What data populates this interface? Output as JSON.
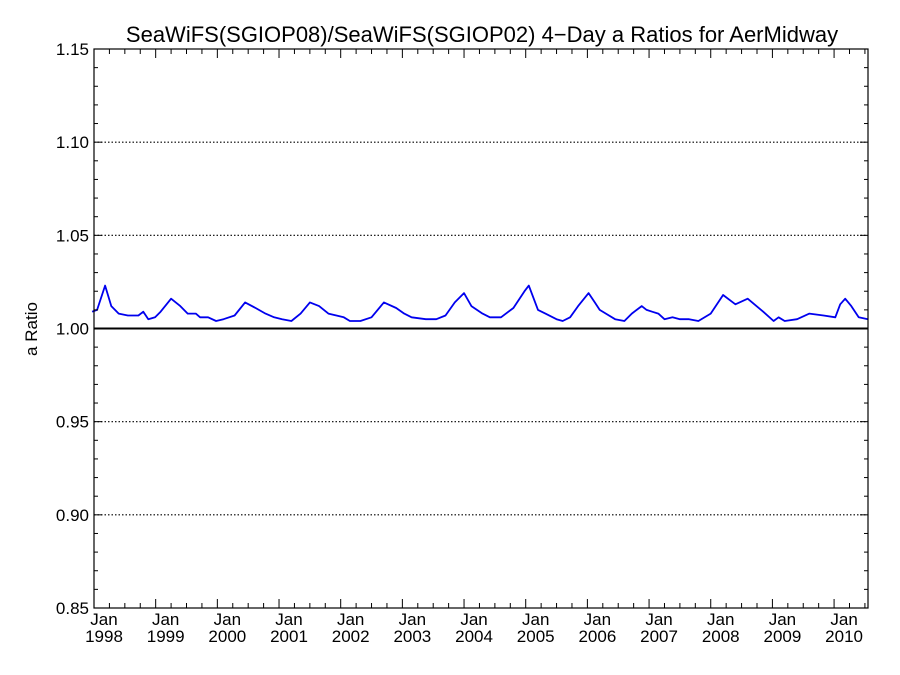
{
  "chart_data": {
    "type": "line",
    "title": "SeaWiFS(SGIOP08)/SeaWiFS(SGIOP02) 4−Day a Ratios for AerMidway",
    "xlabel": "",
    "ylabel": "a Ratio",
    "xlim": [
      1998.0,
      2010.55
    ],
    "ylim": [
      0.85,
      1.15
    ],
    "y_ticks": [
      {
        "value": 0.85,
        "label": "0.85"
      },
      {
        "value": 0.9,
        "label": "0.90"
      },
      {
        "value": 0.95,
        "label": "0.95"
      },
      {
        "value": 1.0,
        "label": "1.00"
      },
      {
        "value": 1.05,
        "label": "1.05"
      },
      {
        "value": 1.1,
        "label": "1.10"
      },
      {
        "value": 1.15,
        "label": "1.15"
      }
    ],
    "x_ticks": [
      {
        "value": 1998,
        "month": "Jan",
        "year": "1998"
      },
      {
        "value": 1999,
        "month": "Jan",
        "year": "1999"
      },
      {
        "value": 2000,
        "month": "Jan",
        "year": "2000"
      },
      {
        "value": 2001,
        "month": "Jan",
        "year": "2001"
      },
      {
        "value": 2002,
        "month": "Jan",
        "year": "2002"
      },
      {
        "value": 2003,
        "month": "Jan",
        "year": "2003"
      },
      {
        "value": 2004,
        "month": "Jan",
        "year": "2004"
      },
      {
        "value": 2005,
        "month": "Jan",
        "year": "2005"
      },
      {
        "value": 2006,
        "month": "Jan",
        "year": "2006"
      },
      {
        "value": 2007,
        "month": "Jan",
        "year": "2007"
      },
      {
        "value": 2008,
        "month": "Jan",
        "year": "2008"
      },
      {
        "value": 2009,
        "month": "Jan",
        "year": "2009"
      },
      {
        "value": 2010,
        "month": "Jan",
        "year": "2010"
      }
    ],
    "gridlines_y": [
      0.9,
      0.95,
      1.05,
      1.1
    ],
    "reference_line": 1.0,
    "series": [
      {
        "color": "#0000ee",
        "x": [
          1997.97,
          1998.05,
          1998.18,
          1998.28,
          1998.4,
          1998.55,
          1998.72,
          1998.8,
          1998.88,
          1998.99,
          1999.08,
          1999.25,
          1999.4,
          1999.52,
          1999.65,
          1999.72,
          1999.85,
          1999.98,
          2000.1,
          2000.28,
          2000.45,
          2000.62,
          2000.78,
          2000.92,
          2001.05,
          2001.2,
          2001.35,
          2001.5,
          2001.65,
          2001.8,
          2001.93,
          2002.05,
          2002.15,
          2002.32,
          2002.5,
          2002.7,
          2002.9,
          2003.03,
          2003.15,
          2003.38,
          2003.55,
          2003.7,
          2003.85,
          2004.0,
          2004.12,
          2004.3,
          2004.42,
          2004.6,
          2004.8,
          2004.98,
          2005.05,
          2005.2,
          2005.32,
          2005.5,
          2005.6,
          2005.72,
          2005.85,
          2006.02,
          2006.12,
          2006.2,
          2006.3,
          2006.45,
          2006.6,
          2006.72,
          2006.88,
          2006.96,
          2007.05,
          2007.15,
          2007.25,
          2007.38,
          2007.5,
          2007.65,
          2007.8,
          2008.0,
          2008.2,
          2008.4,
          2008.6,
          2008.85,
          2009.02,
          2009.1,
          2009.2,
          2009.4,
          2009.6,
          2009.83,
          2010.02,
          2010.1,
          2010.18,
          2010.28,
          2010.4,
          2010.55
        ],
        "y": [
          1.009,
          1.01,
          1.023,
          1.012,
          1.008,
          1.007,
          1.007,
          1.009,
          1.005,
          1.006,
          1.009,
          1.016,
          1.012,
          1.008,
          1.008,
          1.006,
          1.006,
          1.004,
          1.005,
          1.007,
          1.014,
          1.011,
          1.008,
          1.006,
          1.005,
          1.004,
          1.008,
          1.014,
          1.012,
          1.008,
          1.007,
          1.006,
          1.004,
          1.004,
          1.006,
          1.014,
          1.011,
          1.008,
          1.006,
          1.005,
          1.005,
          1.007,
          1.014,
          1.019,
          1.012,
          1.008,
          1.006,
          1.006,
          1.011,
          1.02,
          1.023,
          1.01,
          1.008,
          1.005,
          1.004,
          1.006,
          1.012,
          1.019,
          1.014,
          1.01,
          1.008,
          1.005,
          1.004,
          1.008,
          1.012,
          1.01,
          1.009,
          1.008,
          1.005,
          1.006,
          1.005,
          1.005,
          1.004,
          1.008,
          1.018,
          1.013,
          1.016,
          1.009,
          1.004,
          1.006,
          1.004,
          1.005,
          1.008,
          1.007,
          1.006,
          1.013,
          1.016,
          1.012,
          1.006,
          1.005
        ]
      }
    ]
  }
}
